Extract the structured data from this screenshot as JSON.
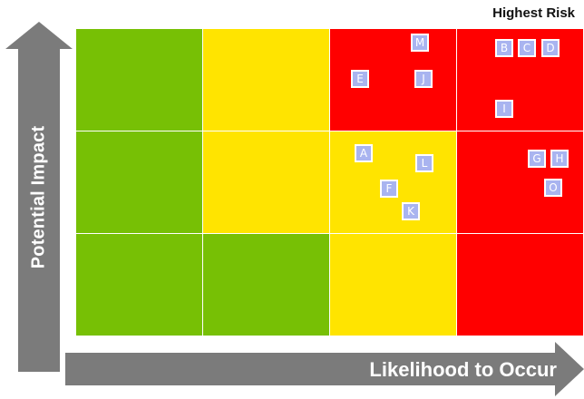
{
  "header": {
    "highest_risk_label": "Highest Risk"
  },
  "axes": {
    "y_label": "Potential Impact",
    "x_label": "Likelihood to Occur",
    "arrow_color": "#7b7b7b"
  },
  "colors": {
    "green": "#77c005",
    "yellow": "#ffe400",
    "red": "#ff0000",
    "marker": "#a9b4f0"
  },
  "grid": {
    "rows": [
      [
        "green",
        "yellow",
        "red",
        "red"
      ],
      [
        "green",
        "yellow",
        "yellow",
        "red"
      ],
      [
        "green",
        "green",
        "yellow",
        "red"
      ]
    ]
  },
  "markers": [
    {
      "label": "M"
    },
    {
      "label": "E"
    },
    {
      "label": "J"
    },
    {
      "label": "B"
    },
    {
      "label": "C"
    },
    {
      "label": "D"
    },
    {
      "label": "I"
    },
    {
      "label": "A"
    },
    {
      "label": "L"
    },
    {
      "label": "F"
    },
    {
      "label": "K"
    },
    {
      "label": "G"
    },
    {
      "label": "H"
    },
    {
      "label": "O"
    }
  ]
}
